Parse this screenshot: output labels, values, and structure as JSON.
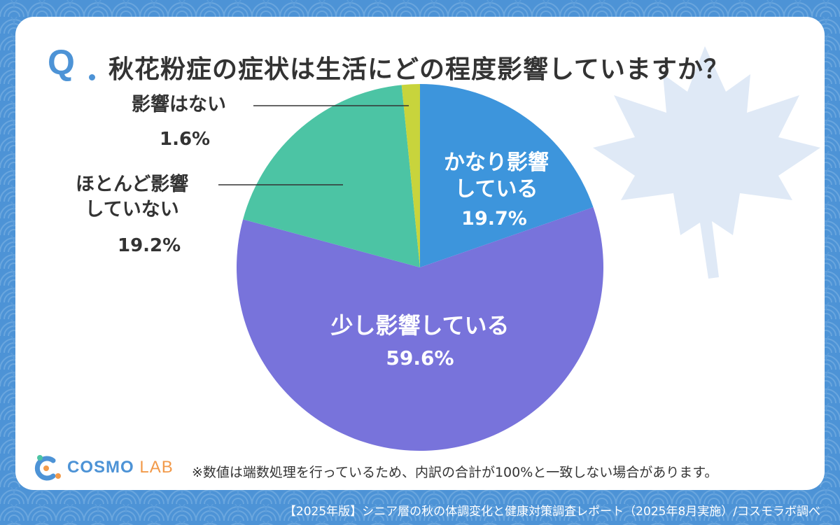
{
  "title_mark": "Q",
  "title": "秋花粉症の症状は生活にどの程度影響していますか？",
  "chart_data": {
    "type": "pie",
    "start_angle_deg": 0,
    "direction": "clockwise",
    "slices": [
      {
        "label_lines": [
          "かなり影響",
          "している"
        ],
        "value": 19.7,
        "display": "19.7%",
        "color": "#3d95dc",
        "label_position": "inside"
      },
      {
        "label_lines": [
          "少し影響している"
        ],
        "value": 59.6,
        "display": "59.6%",
        "color": "#7873db",
        "label_position": "inside"
      },
      {
        "label_lines": [
          "ほとんど影響",
          "していない"
        ],
        "value": 19.2,
        "display": "19.2%",
        "color": "#4cc4a4",
        "label_position": "outside-left"
      },
      {
        "label_lines": [
          "影響はない"
        ],
        "value": 1.6,
        "display": "1.6%",
        "color": "#c8d43c",
        "label_position": "outside-left"
      }
    ]
  },
  "note": "※数値は端数処理を行っているため、内訳の合計が100%と一致しない場合があります。",
  "logo": {
    "text_main": "COSMO",
    "text_sub": "LAB"
  },
  "footer": "【2025年版】シニア層の秋の体調変化と健康対策調査レポート（2025年8月実施）/コスモラボ調べ",
  "colors": {
    "background": "#4d93d6",
    "card": "#ffffff",
    "text": "#333333",
    "accent": "#4d93d6"
  }
}
